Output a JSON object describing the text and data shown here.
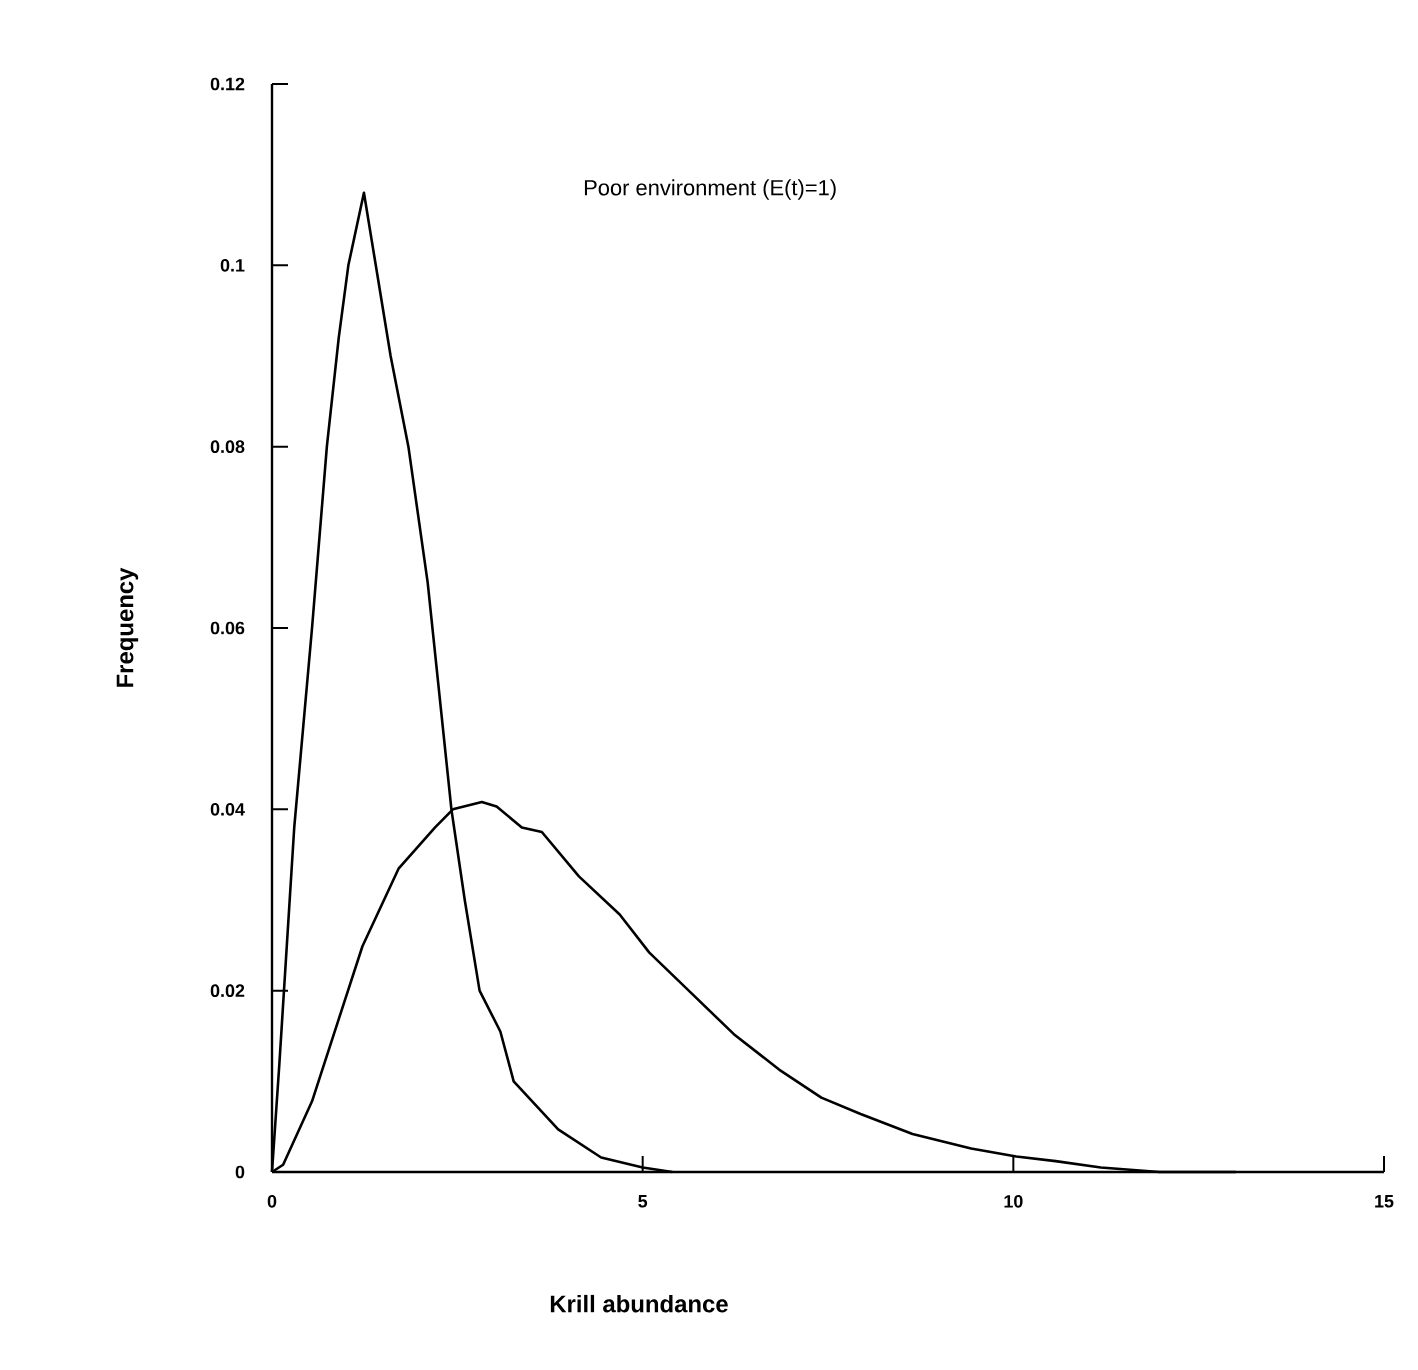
{
  "chart_data": {
    "type": "line",
    "xlabel": "Krill abundance",
    "ylabel": "Frequency",
    "annotations": [
      "Poor environment (E(t)=1)"
    ],
    "xlim": [
      0,
      15
    ],
    "xticks": [
      0,
      5,
      10,
      15
    ],
    "ylim": [
      0,
      0.12
    ],
    "yticks": [
      0,
      0.02,
      0.04,
      0.06,
      0.08,
      0.1,
      0.12
    ],
    "marker": "none",
    "line_style": "solid",
    "series": [
      {
        "color": "#000000",
        "x": [
          0,
          0.1,
          0.2,
          0.3,
          0.54,
          0.74,
          0.9,
          1.03,
          1.24,
          1.4,
          1.6,
          1.84,
          2.1,
          2.42,
          2.6,
          2.8,
          3.08,
          3.26,
          3.86,
          4.44,
          5.0,
          5.4
        ],
        "values": [
          0,
          0.012,
          0.025,
          0.038,
          0.06,
          0.08,
          0.092,
          0.1,
          0.108,
          0.1,
          0.09,
          0.08,
          0.065,
          0.04,
          0.03,
          0.02,
          0.0155,
          0.01,
          0.0047,
          0.0016,
          0.0005,
          0
        ]
      },
      {
        "color": "#000000",
        "x": [
          0,
          0.15,
          0.54,
          1.22,
          1.71,
          2.2,
          2.44,
          2.83,
          3.03,
          3.37,
          3.64,
          4.14,
          4.69,
          5.09,
          5.66,
          6.23,
          6.84,
          7.41,
          7.94,
          8.64,
          9.43,
          10.04,
          10.57,
          11.18,
          11.97,
          13.0
        ],
        "values": [
          0,
          0.0008,
          0.0078,
          0.0249,
          0.0335,
          0.038,
          0.04,
          0.0408,
          0.0403,
          0.038,
          0.0375,
          0.0326,
          0.0284,
          0.0242,
          0.0197,
          0.0152,
          0.0113,
          0.0082,
          0.0064,
          0.0042,
          0.0026,
          0.0017,
          0.0012,
          0.0005,
          0,
          0
        ]
      }
    ]
  }
}
